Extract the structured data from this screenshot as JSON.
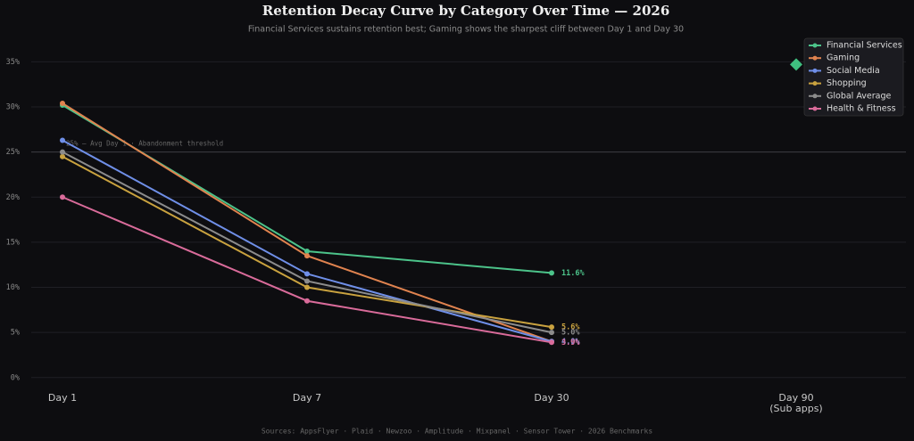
{
  "chart_data": {
    "type": "line",
    "title": "Retention Decay Curve by Category Over Time — 2026",
    "subtitle": "Financial Services sustains retention best; Gaming shows the sharpest cliff between Day 1 and Day 30",
    "source": "Sources: AppsFlyer · Plaid · Newzoo · Amplitude · Mixpanel · Sensor Tower · 2026 Benchmarks",
    "categories": [
      "Day 1",
      "Day 7",
      "Day 30",
      "Day 90\n(Sub apps)"
    ],
    "series": [
      {
        "name": "Financial Services",
        "color": "#4cc38a",
        "values": [
          30.2,
          14.0,
          11.6,
          null
        ],
        "value_labels": [
          null,
          null,
          "11.6%",
          null
        ]
      },
      {
        "name": "Gaming",
        "color": "#e0834f",
        "values": [
          30.4,
          13.5,
          4.0,
          null
        ],
        "value_labels": [
          null,
          null,
          "4.0%",
          null
        ]
      },
      {
        "name": "Social Media",
        "color": "#6f8fe8",
        "values": [
          26.3,
          11.5,
          4.0,
          null
        ],
        "value_labels": [
          null,
          null,
          "4.0%",
          null
        ]
      },
      {
        "name": "Shopping",
        "color": "#c9a23f",
        "values": [
          24.5,
          10.0,
          5.6,
          null
        ],
        "value_labels": [
          null,
          null,
          "5.6%",
          null
        ]
      },
      {
        "name": "Global Average",
        "color": "#8c8c8c",
        "values": [
          25.0,
          10.7,
          5.0,
          null
        ],
        "value_labels": [
          null,
          null,
          "5.0%",
          null
        ]
      },
      {
        "name": "Health & Fitness",
        "color": "#d96b9a",
        "values": [
          20.0,
          8.5,
          3.9,
          null
        ],
        "value_labels": [
          null,
          null,
          "3.9%",
          null
        ]
      }
    ],
    "diamond_marker": {
      "color": "#3fbf7f",
      "values": [
        null,
        null,
        null,
        34.7
      ]
    },
    "reference_line": {
      "value": 25,
      "label": "25% — Avg Day 1 · Abandonment threshold"
    },
    "ylim": [
      -1.6,
      37.9
    ],
    "yticks": [
      {
        "value": 0,
        "label": "0%"
      },
      {
        "value": 5,
        "label": "5%"
      },
      {
        "value": 10,
        "label": "10%"
      },
      {
        "value": 15,
        "label": "15%"
      },
      {
        "value": 20,
        "label": "20%"
      },
      {
        "value": 25,
        "label": "25%"
      },
      {
        "value": 30,
        "label": "30%"
      },
      {
        "value": 35,
        "label": "35%"
      }
    ],
    "grid": true,
    "legend": "top-right"
  }
}
